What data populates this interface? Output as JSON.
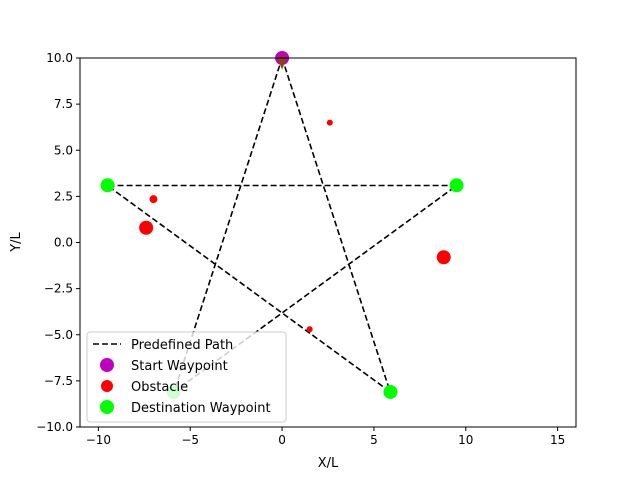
{
  "chart_data": {
    "type": "scatter",
    "title": "",
    "xlabel": "X/L",
    "ylabel": "Y/L",
    "xlim": [
      -11,
      16
    ],
    "ylim": [
      -10,
      10
    ],
    "x_ticks": [
      -10,
      -5,
      0,
      5,
      10,
      15
    ],
    "x_tick_labels": [
      "−10",
      "−5",
      "0",
      "5",
      "10",
      "15"
    ],
    "y_ticks": [
      -10,
      -7.5,
      -5,
      -2.5,
      0,
      2.5,
      5,
      7.5,
      10
    ],
    "y_tick_labels": [
      "−10.0",
      "−7.5",
      "−5.0",
      "−2.5",
      "0.0",
      "2.5",
      "5.0",
      "7.5",
      "10.0"
    ],
    "grid": false,
    "legend_position": "lower-left",
    "series": [
      {
        "name": "Predefined Path",
        "kind": "line",
        "style": "dashed",
        "color": "#000000",
        "points": [
          [
            0,
            10
          ],
          [
            5.88,
            -8.09
          ],
          [
            -9.51,
            3.09
          ],
          [
            9.51,
            3.09
          ],
          [
            -5.88,
            -8.09
          ],
          [
            0,
            10
          ]
        ]
      },
      {
        "name": "Start Waypoint",
        "kind": "points",
        "color": "#bf00bf",
        "points": [
          [
            0,
            10
          ]
        ]
      },
      {
        "name": "Obstacle",
        "kind": "points",
        "color": "#ff0000",
        "points": [
          {
            "x": 2.6,
            "y": 6.5,
            "size": "small"
          },
          {
            "x": -7.0,
            "y": 2.35,
            "size": "medium"
          },
          {
            "x": -7.4,
            "y": 0.8,
            "size": "large"
          },
          {
            "x": 8.8,
            "y": -0.8,
            "size": "large"
          },
          {
            "x": 1.5,
            "y": -4.7,
            "size": "small"
          }
        ]
      },
      {
        "name": "Destination Waypoint",
        "kind": "points",
        "color": "#00ff00",
        "points": [
          [
            -9.5,
            3.1
          ],
          [
            9.5,
            3.1
          ],
          [
            5.9,
            -8.1
          ],
          [
            -5.9,
            -8.1
          ]
        ]
      }
    ],
    "vehicle": {
      "x": 0,
      "y": 9.75,
      "heading_color": "#8b4513"
    }
  }
}
